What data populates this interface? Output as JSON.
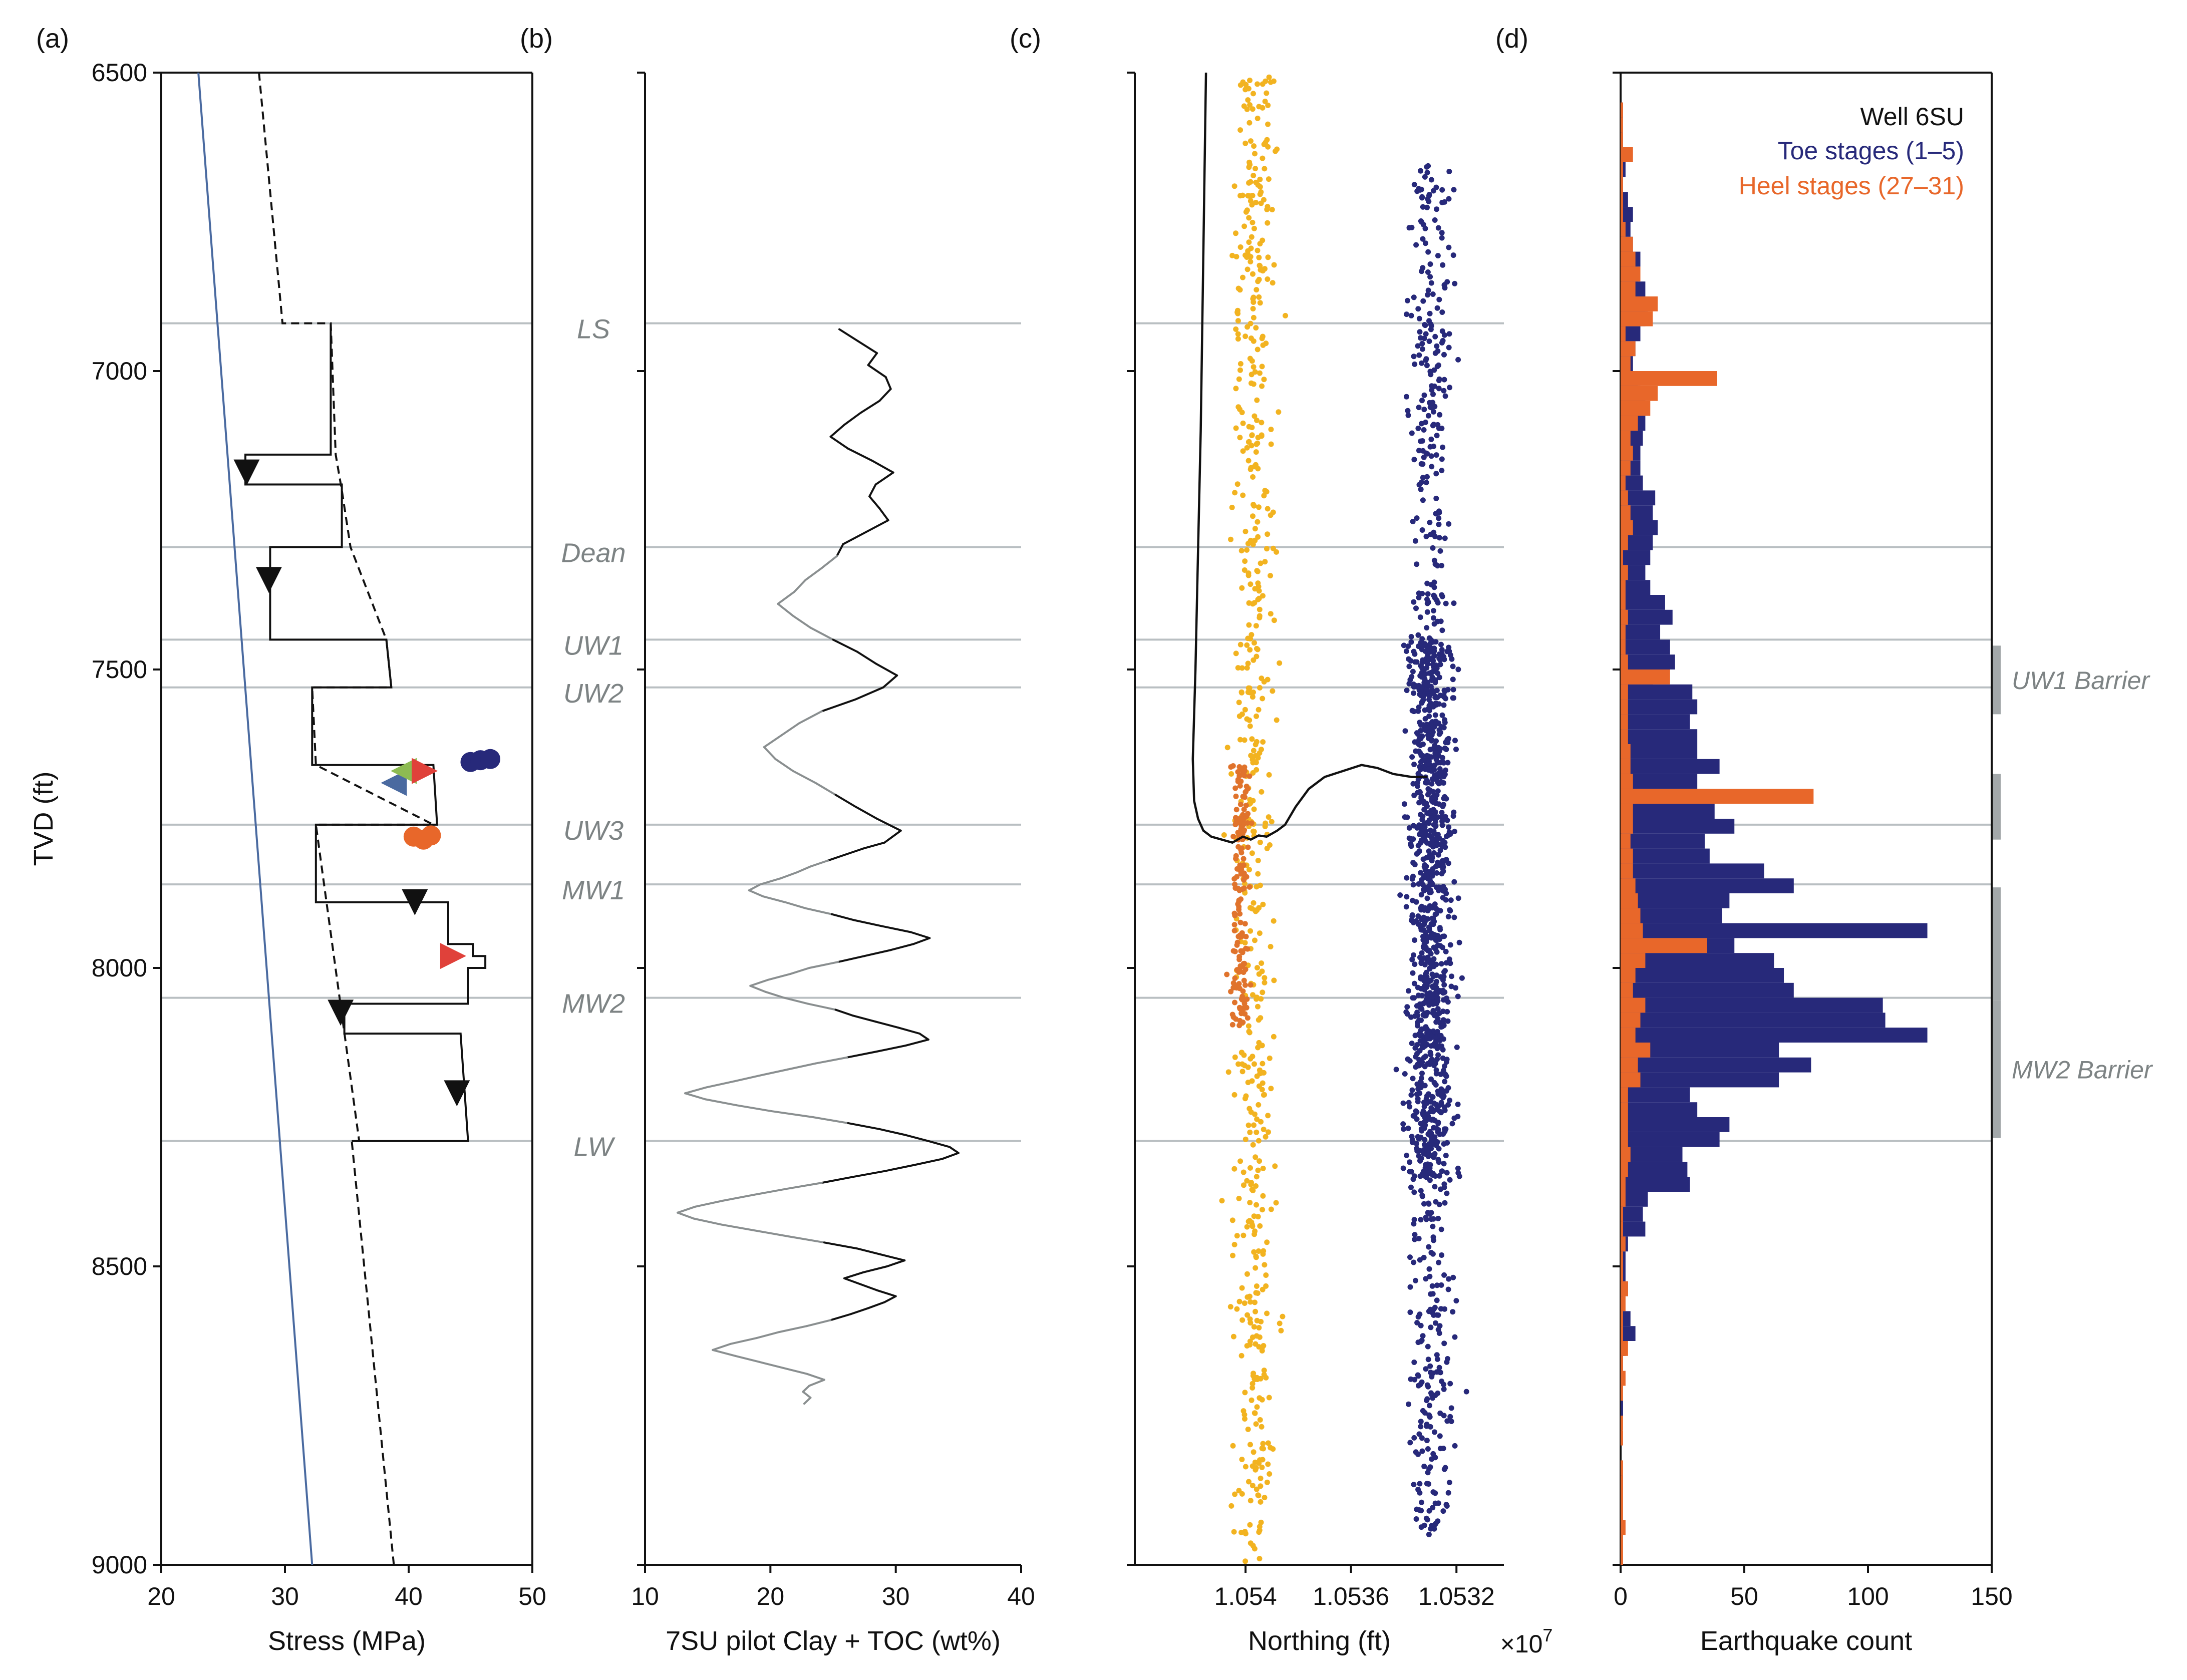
{
  "figure": {
    "colors": {
      "blue": "#27297a",
      "orange": "#e8672a",
      "yellow": "#f2b320",
      "dark_orange": "#e0732c",
      "gridline": "#b9bfc2",
      "stress_line": "#4a6aa0",
      "grey_text": "#7d8384"
    },
    "depth_axis": {
      "label": "TVD (ft)",
      "range": [
        6500,
        9000
      ],
      "ticks": [
        "6500",
        "7000",
        "7500",
        "8000",
        "8500",
        "9000"
      ]
    },
    "units": [
      {
        "name": "LS",
        "depth": 6920
      },
      {
        "name": "Dean",
        "depth": 7295
      },
      {
        "name": "UW1",
        "depth": 7450
      },
      {
        "name": "UW2",
        "depth": 7530
      },
      {
        "name": "UW3",
        "depth": 7760
      },
      {
        "name": "MW1",
        "depth": 7860
      },
      {
        "name": "MW2",
        "depth": 8050
      },
      {
        "name": "LW",
        "depth": 8290
      }
    ]
  },
  "chart_data": [
    {
      "panel": "(a)",
      "type": "line",
      "xlabel": "Stress (MPa)",
      "xlim": [
        20,
        50
      ],
      "xticks": [
        "20",
        "30",
        "40",
        "50"
      ],
      "series": [
        {
          "style": "blue",
          "points": [
            [
              23,
              6500
            ],
            [
              32.2,
              9000
            ]
          ]
        },
        {
          "style": "dashed",
          "points": [
            [
              27.9,
              6500
            ],
            [
              29.8,
              6920
            ],
            [
              33.7,
              6920
            ],
            [
              34.1,
              7140
            ],
            [
              34.6,
              7200
            ],
            [
              35.3,
              7295
            ],
            [
              38.2,
              7450
            ],
            [
              38.6,
              7530
            ],
            [
              32.2,
              7530
            ],
            [
              32.5,
              7660
            ],
            [
              42.0,
              7760
            ],
            [
              32.5,
              7760
            ],
            [
              36.0,
              8290
            ],
            [
              35.4,
              8290
            ],
            [
              38.8,
              9000
            ]
          ]
        },
        {
          "style": "solid",
          "points": [
            [
              33.7,
              6920
            ],
            [
              33.7,
              7140
            ],
            [
              26.8,
              7140
            ],
            [
              26.8,
              7190
            ],
            [
              34.6,
              7190
            ],
            [
              34.6,
              7295
            ],
            [
              28.8,
              7295
            ],
            [
              28.8,
              7450
            ],
            [
              38.2,
              7450
            ],
            [
              38.6,
              7530
            ],
            [
              32.2,
              7530
            ],
            [
              32.2,
              7660
            ],
            [
              42.0,
              7660
            ],
            [
              42.3,
              7760
            ],
            [
              32.5,
              7760
            ],
            [
              32.5,
              7890
            ],
            [
              43.2,
              7890
            ],
            [
              43.2,
              7960
            ],
            [
              45.2,
              7960
            ],
            [
              45.2,
              7980
            ],
            [
              46.2,
              7980
            ],
            [
              46.2,
              8000
            ],
            [
              44.8,
              8000
            ],
            [
              44.8,
              8060
            ],
            [
              34.8,
              8060
            ],
            [
              34.8,
              8110
            ],
            [
              44.2,
              8110
            ],
            [
              44.8,
              8290
            ],
            [
              35.4,
              8290
            ]
          ]
        }
      ],
      "markers": [
        {
          "shape": "tri-down",
          "color": "#111111",
          "x": 26.9,
          "y": 7170
        },
        {
          "shape": "tri-down",
          "color": "#111111",
          "x": 28.7,
          "y": 7350
        },
        {
          "shape": "tri-down",
          "color": "#111111",
          "x": 40.5,
          "y": 7890
        },
        {
          "shape": "tri-down",
          "color": "#111111",
          "x": 34.5,
          "y": 8075
        },
        {
          "shape": "tri-down",
          "color": "#111111",
          "x": 43.9,
          "y": 8210
        },
        {
          "shape": "tri-left",
          "color": "#4a6aa0",
          "x": 38.8,
          "y": 7690
        },
        {
          "shape": "tri-left",
          "color": "#8dbb52",
          "x": 39.6,
          "y": 7670
        },
        {
          "shape": "tri-right",
          "color": "#e0413a",
          "x": 41.3,
          "y": 7670
        },
        {
          "shape": "tri-right",
          "color": "#e0413a",
          "x": 43.6,
          "y": 7980
        },
        {
          "shape": "circle",
          "color": "#27297a",
          "x": 45.0,
          "y": 7655
        },
        {
          "shape": "circle",
          "color": "#27297a",
          "x": 45.8,
          "y": 7652
        },
        {
          "shape": "circle",
          "color": "#27297a",
          "x": 46.6,
          "y": 7650
        },
        {
          "shape": "circle",
          "color": "#e8672a",
          "x": 40.4,
          "y": 7780
        },
        {
          "shape": "circle",
          "color": "#e8672a",
          "x": 41.2,
          "y": 7785
        },
        {
          "shape": "circle",
          "color": "#e8672a",
          "x": 41.8,
          "y": 7778
        }
      ]
    },
    {
      "panel": "(b)",
      "type": "line",
      "xlabel": "7SU pilot Clay + TOC (wt%)",
      "xlim": [
        10,
        40
      ],
      "xticks": [
        "10",
        "20",
        "30",
        "40"
      ],
      "series": [
        {
          "name": "",
          "x": [
            25.5,
            27.0,
            28.5,
            27.8,
            29.2,
            29.6,
            28.7,
            27.2,
            25.9,
            24.8,
            26.2,
            28.1,
            29.8,
            28.4,
            27.9,
            28.7,
            29.4,
            27.6,
            25.8,
            25.3,
            24.1,
            22.8,
            21.9,
            20.6,
            21.8,
            23.2,
            25.0,
            26.9,
            28.4,
            30.1,
            29.0,
            26.8,
            24.1,
            22.3,
            20.9,
            19.5,
            20.4,
            21.8,
            23.6,
            25.2,
            26.8,
            28.5,
            30.4,
            29.1,
            27.4,
            26.0,
            24.6,
            23.2,
            22.1,
            20.8,
            19.2,
            18.3,
            19.4,
            21.2,
            22.8,
            24.9,
            26.7,
            28.9,
            31.2,
            32.7,
            31.4,
            29.6,
            27.5,
            25.4,
            23.1,
            21.6,
            19.8,
            18.4,
            19.6,
            21.1,
            23.0,
            25.2,
            26.6,
            28.4,
            30.2,
            31.9,
            32.6,
            30.8,
            28.5,
            26.1,
            23.6,
            21.4,
            19.2,
            17.1,
            14.9,
            13.2,
            14.8,
            17.3,
            20.1,
            23.4,
            26.2,
            28.7,
            30.8,
            32.6,
            34.3,
            35.0,
            33.7,
            31.5,
            29.2,
            26.6,
            24.1,
            21.3,
            18.7,
            16.2,
            14.0,
            12.6,
            13.9,
            16.1,
            18.8,
            21.5,
            24.3,
            26.9,
            28.8,
            30.7,
            29.3,
            27.4,
            25.9,
            27.2,
            28.5,
            30.0,
            29.1,
            27.8,
            26.4,
            24.8,
            22.9,
            20.7,
            18.9,
            16.8,
            15.4,
            17.2,
            19.1,
            21.0,
            22.9,
            24.3,
            23.1,
            22.6,
            23.2,
            22.7
          ],
          "y": [
            6930,
            6950,
            6970,
            6990,
            7010,
            7030,
            7050,
            7070,
            7090,
            7110,
            7130,
            7150,
            7170,
            7190,
            7210,
            7230,
            7250,
            7270,
            7290,
            7310,
            7330,
            7350,
            7370,
            7390,
            7410,
            7430,
            7450,
            7470,
            7490,
            7510,
            7530,
            7550,
            7570,
            7590,
            7610,
            7630,
            7650,
            7670,
            7690,
            7710,
            7730,
            7750,
            7770,
            7790,
            7800,
            7810,
            7820,
            7830,
            7840,
            7850,
            7860,
            7870,
            7880,
            7890,
            7900,
            7910,
            7920,
            7930,
            7940,
            7950,
            7960,
            7970,
            7980,
            7990,
            8000,
            8010,
            8020,
            8030,
            8040,
            8050,
            8060,
            8070,
            8080,
            8090,
            8100,
            8110,
            8120,
            8130,
            8140,
            8150,
            8160,
            8170,
            8180,
            8190,
            8200,
            8210,
            8220,
            8230,
            8240,
            8250,
            8260,
            8270,
            8280,
            8290,
            8300,
            8310,
            8320,
            8330,
            8340,
            8350,
            8360,
            8370,
            8380,
            8390,
            8400,
            8410,
            8420,
            8430,
            8440,
            8450,
            8460,
            8470,
            8480,
            8490,
            8500,
            8510,
            8520,
            8530,
            8540,
            8550,
            8560,
            8570,
            8580,
            8590,
            8600,
            8610,
            8620,
            8630,
            8640,
            8650,
            8660,
            8670,
            8680,
            8690,
            8700,
            8710,
            8720,
            8730
          ]
        }
      ]
    },
    {
      "panel": "(c)",
      "type": "scatter",
      "xlabel": "Northing (ft)",
      "xlim": [
        10544200,
        10530200
      ],
      "xticks": [
        "1.054",
        "1.0536",
        "1.0532"
      ],
      "tick_values": [
        10540000,
        10536000,
        10532000
      ],
      "axis_multiplier": "×10",
      "axis_multiplier_exp": "7",
      "clusters": [
        {
          "color": "yellow",
          "x_center": 10539700,
          "x_spread": 1100,
          "y_range": [
            6500,
            9000
          ],
          "count": 620
        },
        {
          "color": "dark_orange",
          "x_center": 10540200,
          "x_spread": 500,
          "y_range": [
            7650,
            8100
          ],
          "count": 160
        },
        {
          "color": "blue",
          "x_center": 10533000,
          "x_spread": 1200,
          "y_range": [
            6650,
            8950
          ],
          "count": 1500
        }
      ],
      "well_path": {
        "x": [
          10541500,
          10541600,
          10541700,
          10541800,
          10541900,
          10542000,
          10541950,
          10541800,
          10541600,
          10541300,
          10540900,
          10540500,
          10540100,
          10539800,
          10539500,
          10539200,
          10538800,
          10538500,
          10538100,
          10537600,
          10537000,
          10536300,
          10535600,
          10535000,
          10534400,
          10533700,
          10533100
        ],
        "y": [
          6500,
          6800,
          7100,
          7300,
          7500,
          7650,
          7720,
          7750,
          7770,
          7780,
          7785,
          7790,
          7780,
          7785,
          7778,
          7780,
          7770,
          7760,
          7730,
          7700,
          7680,
          7670,
          7660,
          7665,
          7675,
          7680,
          7680
        ]
      }
    },
    {
      "panel": "(d)",
      "type": "bar",
      "orientation": "horizontal",
      "xlabel": "Earthquake count",
      "xlim": [
        0,
        150
      ],
      "xticks": [
        "0",
        "50",
        "100",
        "150"
      ],
      "bin_size": 25,
      "bin_start": 6500,
      "legend": {
        "title": "Well 6SU",
        "entries": [
          {
            "label": "Toe stages (1–5)",
            "color": "blue"
          },
          {
            "label": "Heel stages (27–31)",
            "color": "orange"
          }
        ]
      },
      "series": [
        {
          "name": "Toe stages (1–5)",
          "values": [
            0,
            0,
            1,
            0,
            1,
            1,
            2,
            1,
            3,
            5,
            4,
            5,
            8,
            7,
            10,
            11,
            10,
            8,
            6,
            5,
            7,
            8,
            10,
            10,
            9,
            8,
            8,
            9,
            14,
            13,
            15,
            13,
            12,
            10,
            12,
            18,
            21,
            16,
            20,
            22,
            13,
            29,
            31,
            28,
            31,
            31,
            40,
            31,
            36,
            38,
            46,
            34,
            36,
            58,
            70,
            44,
            41,
            124,
            46,
            62,
            66,
            70,
            106,
            107,
            124,
            64,
            77,
            64,
            28,
            31,
            44,
            40,
            25,
            27,
            28,
            11,
            9,
            10,
            3,
            2,
            2,
            3,
            1,
            4,
            6,
            2,
            1,
            0,
            0,
            1,
            0,
            0,
            0,
            0,
            1,
            0,
            0,
            1,
            0,
            0
          ],
          "note_values_approximate": ""
        },
        {
          "name": "Heel stages (27–31)",
          "values": [
            0,
            0,
            1,
            1,
            1,
            5,
            1,
            1,
            1,
            1,
            2,
            5,
            6,
            8,
            6,
            15,
            13,
            2,
            6,
            4,
            39,
            15,
            12,
            7,
            4,
            5,
            4,
            2,
            3,
            4,
            5,
            3,
            1,
            3,
            2,
            2,
            3,
            2,
            2,
            3,
            20,
            3,
            3,
            3,
            3,
            4,
            4,
            5,
            78,
            5,
            5,
            4,
            5,
            5,
            6,
            7,
            8,
            9,
            35,
            10,
            6,
            5,
            10,
            8,
            6,
            12,
            7,
            8,
            3,
            3,
            3,
            3,
            4,
            3,
            2,
            2,
            1,
            1,
            2,
            1,
            1,
            3,
            2,
            1,
            1,
            3,
            1,
            2,
            1,
            0,
            1,
            1,
            0,
            1,
            1,
            1,
            1,
            2,
            1,
            1
          ]
        }
      ],
      "barriers": [
        {
          "label": "UW1 Barrier",
          "y_range": [
            7455,
            7580
          ]
        },
        {
          "label": "",
          "y_range": [
            7670,
            7790
          ]
        },
        {
          "label": "",
          "y_range": [
            7860,
            8060
          ]
        },
        {
          "label": "MW2 Barrier",
          "y_range": [
            8050,
            8290
          ]
        }
      ]
    }
  ]
}
